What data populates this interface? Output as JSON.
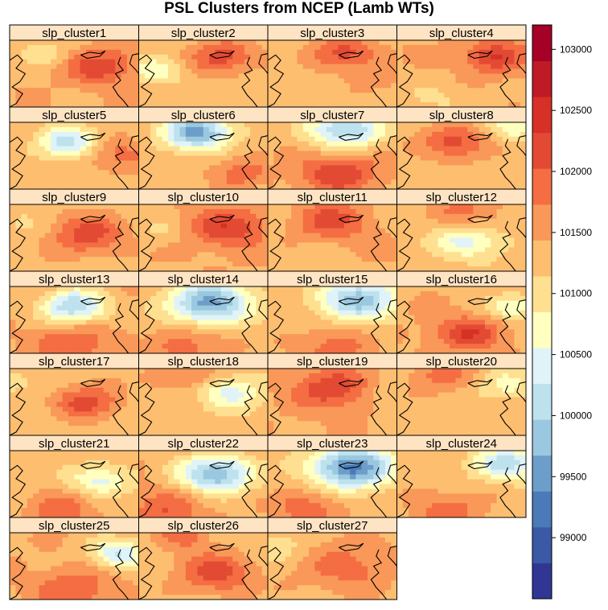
{
  "chart_data": {
    "type": "heatmap",
    "title": "PSL Clusters from NCEP (Lamb WTs)",
    "panels": [
      "slp_cluster1",
      "slp_cluster2",
      "slp_cluster3",
      "slp_cluster4",
      "slp_cluster5",
      "slp_cluster6",
      "slp_cluster7",
      "slp_cluster8",
      "slp_cluster9",
      "slp_cluster10",
      "slp_cluster11",
      "slp_cluster12",
      "slp_cluster13",
      "slp_cluster14",
      "slp_cluster15",
      "slp_cluster16",
      "slp_cluster17",
      "slp_cluster18",
      "slp_cluster19",
      "slp_cluster20",
      "slp_cluster21",
      "slp_cluster22",
      "slp_cluster23",
      "slp_cluster24",
      "slp_cluster25",
      "slp_cluster26",
      "slp_cluster27"
    ],
    "layout": {
      "columns": 4,
      "rows": 7
    },
    "colorbar": {
      "range": [
        98500,
        103200
      ],
      "ticks": [
        99000,
        99500,
        100000,
        100500,
        101000,
        101500,
        102000,
        102500,
        103000
      ],
      "colors": [
        "#313695",
        "#3c59a6",
        "#4a7ab7",
        "#6d9ec9",
        "#9ac8e0",
        "#bde2ee",
        "#e0f3f8",
        "#ffffbf",
        "#fee090",
        "#fdbe70",
        "#f99858",
        "#f46d43",
        "#e34a33",
        "#d73027",
        "#c01a27",
        "#a50026"
      ]
    },
    "strip_color": "#ffe4c4"
  }
}
